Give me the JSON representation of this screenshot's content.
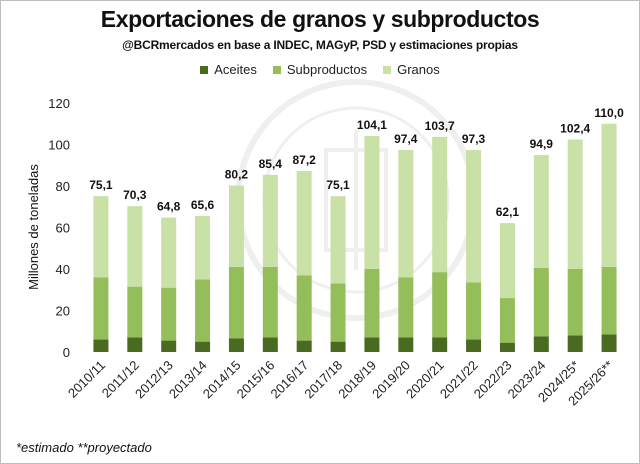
{
  "title": "Exportaciones de granos y subproductos",
  "subtitle": "@BCRmercados en base a INDEC, MAGyP, PSD y estimaciones propias",
  "footnote": "*estimado  **proyectado",
  "colors": {
    "aceites": "#4a6a22",
    "subproductos": "#94be5a",
    "granos": "#c9e0a6",
    "label": "#111111"
  },
  "chart_data": {
    "type": "bar",
    "stacked": true,
    "ylabel": "Millones de toneladas",
    "xlabel": "",
    "ylim": [
      0,
      120
    ],
    "yticks": [
      0,
      20,
      40,
      60,
      80,
      100,
      120
    ],
    "grid": false,
    "legend_position": "top",
    "categories": [
      "2010/11",
      "2011/12",
      "2012/13",
      "2013/14",
      "2014/15",
      "2015/16",
      "2016/17",
      "2017/18",
      "2018/19",
      "2019/20",
      "2020/21",
      "2021/22",
      "2022/23",
      "2023/24",
      "2024/25*",
      "2025/26**"
    ],
    "series": [
      {
        "name": "Aceites",
        "values": [
          6.0,
          7.0,
          5.5,
          5.0,
          6.5,
          7.0,
          5.5,
          5.0,
          7.0,
          7.0,
          7.0,
          6.0,
          4.5,
          7.5,
          8.0,
          8.5
        ]
      },
      {
        "name": "Subproductos",
        "values": [
          30.0,
          24.5,
          25.5,
          30.0,
          34.5,
          34.0,
          31.5,
          28.0,
          33.0,
          29.0,
          31.5,
          27.5,
          21.5,
          33.0,
          32.0,
          32.5
        ]
      },
      {
        "name": "Granos",
        "values": [
          39.1,
          38.8,
          33.8,
          30.6,
          39.2,
          44.4,
          50.2,
          42.1,
          64.1,
          61.4,
          65.2,
          63.8,
          36.1,
          54.4,
          62.4,
          69.0
        ]
      }
    ],
    "totals": [
      75.1,
      70.3,
      64.8,
      65.6,
      80.2,
      85.4,
      87.2,
      75.1,
      104.1,
      97.4,
      103.7,
      97.3,
      62.1,
      94.9,
      102.4,
      110.0
    ],
    "total_labels": [
      "75,1",
      "70,3",
      "64,8",
      "65,6",
      "80,2",
      "85,4",
      "87,2",
      "75,1",
      "104,1",
      "97,4",
      "103,7",
      "97,3",
      "62,1",
      "94,9",
      "102,4",
      "110,0"
    ]
  }
}
